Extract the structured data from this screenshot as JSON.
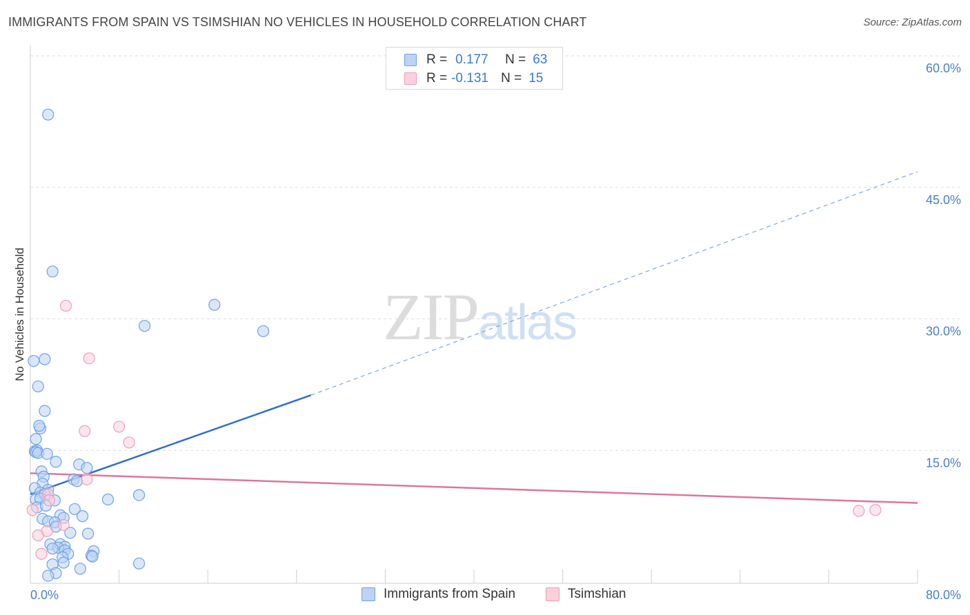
{
  "title": "IMMIGRANTS FROM SPAIN VS TSIMSHIAN NO VEHICLES IN HOUSEHOLD CORRELATION CHART",
  "source": "Source: ZipAtlas.com",
  "watermark": {
    "zip": "ZIP",
    "atlas": "atlas"
  },
  "legend": {
    "r_label": "R =",
    "n_label": "N =",
    "rows": [
      {
        "r": "0.177",
        "n": "63",
        "color": "#6fa0e8",
        "fill": "#bcd3f4"
      },
      {
        "r": "-0.131",
        "n": "15",
        "color": "#ef9db6",
        "fill": "#fbd0dd"
      }
    ]
  },
  "bottom_legend": [
    {
      "label": "Immigrants from Spain",
      "color": "#6fa0e8",
      "fill": "#bcd3f4"
    },
    {
      "label": "Tsimshian",
      "color": "#ef9db6",
      "fill": "#fbd0dd"
    }
  ],
  "chart_data": {
    "type": "scatter",
    "ylabel": "No Vehicles in Household",
    "xlabel": "",
    "xlim": [
      0,
      80
    ],
    "ylim": [
      0,
      60
    ],
    "x_tick_labels": [
      "0.0%",
      "80.0%"
    ],
    "y_ticks": [
      {
        "value": 15,
        "label": "15.0%"
      },
      {
        "value": 30,
        "label": "30.0%"
      },
      {
        "value": 45,
        "label": "45.0%"
      },
      {
        "value": 60,
        "label": "60.0%"
      }
    ],
    "grid": true,
    "series": [
      {
        "name": "Immigrants from Spain",
        "color": "#6fa0e8",
        "fill": "#bcd3f4",
        "trend": {
          "x0": 0,
          "y0": 10.0,
          "x1": 25.3,
          "y1": 21.3,
          "x_extend": 80,
          "y_extend": 46.8
        },
        "points": [
          [
            1.6,
            53.3
          ],
          [
            2.0,
            35.4
          ],
          [
            16.6,
            31.6
          ],
          [
            10.3,
            29.2
          ],
          [
            21.0,
            28.6
          ],
          [
            0.3,
            25.2
          ],
          [
            1.3,
            25.4
          ],
          [
            0.7,
            22.3
          ],
          [
            1.3,
            19.5
          ],
          [
            0.9,
            17.5
          ],
          [
            0.8,
            17.8
          ],
          [
            0.5,
            16.3
          ],
          [
            0.4,
            14.9
          ],
          [
            0.6,
            15.0
          ],
          [
            0.5,
            14.8
          ],
          [
            0.7,
            14.7
          ],
          [
            1.5,
            14.6
          ],
          [
            2.3,
            13.7
          ],
          [
            4.4,
            13.4
          ],
          [
            5.1,
            13.0
          ],
          [
            1.0,
            12.6
          ],
          [
            1.2,
            12.0
          ],
          [
            3.9,
            11.7
          ],
          [
            4.2,
            11.5
          ],
          [
            1.1,
            11.2
          ],
          [
            0.4,
            10.7
          ],
          [
            1.6,
            10.5
          ],
          [
            0.9,
            10.2
          ],
          [
            1.3,
            10.0
          ],
          [
            9.8,
            9.9
          ],
          [
            7.0,
            9.4
          ],
          [
            0.5,
            9.4
          ],
          [
            0.9,
            9.5
          ],
          [
            2.2,
            9.3
          ],
          [
            0.6,
            8.5
          ],
          [
            1.4,
            8.7
          ],
          [
            4.0,
            8.3
          ],
          [
            2.7,
            7.6
          ],
          [
            4.7,
            7.5
          ],
          [
            3.0,
            7.3
          ],
          [
            1.1,
            7.2
          ],
          [
            1.6,
            6.9
          ],
          [
            2.2,
            6.8
          ],
          [
            2.3,
            6.3
          ],
          [
            3.6,
            5.6
          ],
          [
            5.2,
            5.5
          ],
          [
            1.8,
            4.3
          ],
          [
            2.7,
            4.3
          ],
          [
            3.1,
            4.0
          ],
          [
            2.5,
            3.9
          ],
          [
            2.0,
            3.8
          ],
          [
            3.1,
            3.6
          ],
          [
            5.7,
            3.5
          ],
          [
            3.4,
            3.2
          ],
          [
            2.9,
            2.8
          ],
          [
            5.5,
            3.0
          ],
          [
            5.6,
            2.9
          ],
          [
            2.0,
            2.0
          ],
          [
            3.0,
            2.2
          ],
          [
            9.8,
            2.1
          ],
          [
            4.5,
            1.5
          ],
          [
            2.3,
            1.0
          ],
          [
            1.6,
            0.7
          ]
        ]
      },
      {
        "name": "Tsimshian",
        "color": "#ef9db6",
        "fill": "#fbd0dd",
        "trend": {
          "x0": 0,
          "y0": 12.4,
          "x1": 80,
          "y1": 9.0
        },
        "points": [
          [
            3.2,
            31.5
          ],
          [
            5.3,
            25.5
          ],
          [
            8.0,
            17.7
          ],
          [
            4.9,
            17.2
          ],
          [
            8.9,
            15.9
          ],
          [
            5.1,
            11.7
          ],
          [
            1.6,
            10.0
          ],
          [
            1.7,
            9.3
          ],
          [
            0.2,
            8.2
          ],
          [
            3.0,
            6.5
          ],
          [
            1.5,
            5.8
          ],
          [
            0.7,
            5.3
          ],
          [
            1.0,
            3.2
          ],
          [
            74.7,
            8.1
          ],
          [
            76.2,
            8.2
          ]
        ]
      }
    ]
  }
}
